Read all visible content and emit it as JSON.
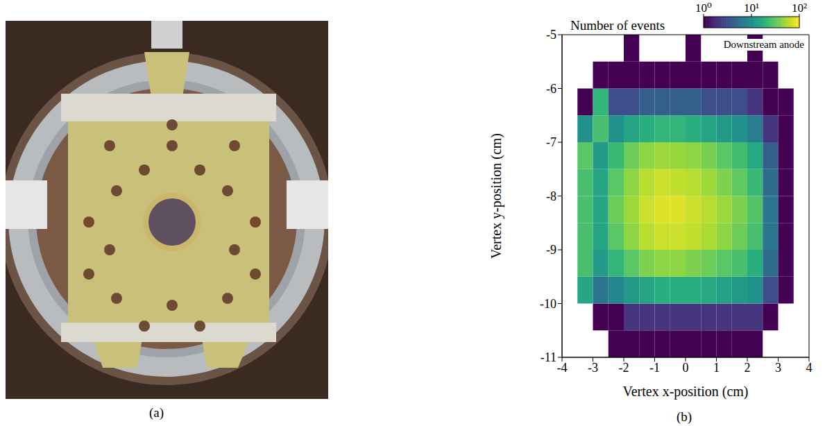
{
  "panel_labels": [
    "(a)",
    "(b)"
  ],
  "chart_data": {
    "type": "heatmap",
    "annotation": "Downstream anode",
    "x_label": "Vertex x-position (cm)",
    "y_label": "Vertex y-position (cm)",
    "xlim": [
      -4,
      4
    ],
    "ylim": [
      -11,
      -5
    ],
    "xticks": [
      -4,
      -3,
      -2,
      -1,
      0,
      1,
      2,
      3,
      4
    ],
    "yticks": [
      -11,
      -10,
      -9,
      -8,
      -7,
      -6,
      -5
    ],
    "x_bins": [
      -4,
      -3.5,
      -3,
      -2.5,
      -2,
      -1.5,
      -1,
      -0.5,
      0,
      0.5,
      1,
      1.5,
      2,
      2.5,
      3,
      3.5,
      4
    ],
    "y_bins": [
      -11,
      -10.5,
      -10,
      -9.5,
      -9,
      -8.5,
      -8,
      -7.5,
      -7,
      -6.5,
      -6,
      -5.5,
      -5
    ],
    "counts": [
      [
        0,
        0,
        0,
        1,
        1,
        1,
        1,
        1,
        1,
        1,
        1,
        1,
        1,
        0,
        0,
        0
      ],
      [
        0,
        0,
        1,
        1,
        2,
        2,
        2,
        2,
        2,
        2,
        2,
        2,
        2,
        1,
        0,
        0
      ],
      [
        0,
        15,
        6,
        8,
        12,
        15,
        18,
        18,
        18,
        16,
        14,
        12,
        10,
        3,
        1,
        0
      ],
      [
        0,
        25,
        12,
        20,
        30,
        40,
        45,
        45,
        40,
        35,
        30,
        25,
        18,
        5,
        1,
        0
      ],
      [
        0,
        25,
        15,
        30,
        45,
        60,
        70,
        70,
        65,
        55,
        45,
        35,
        25,
        6,
        1,
        0
      ],
      [
        0,
        25,
        15,
        35,
        50,
        70,
        80,
        80,
        70,
        60,
        50,
        40,
        28,
        6,
        1,
        0
      ],
      [
        0,
        25,
        15,
        30,
        45,
        60,
        70,
        65,
        60,
        50,
        40,
        32,
        22,
        5,
        1,
        0
      ],
      [
        0,
        30,
        12,
        22,
        35,
        45,
        50,
        48,
        45,
        38,
        30,
        24,
        16,
        4,
        1,
        0
      ],
      [
        0,
        10,
        25,
        10,
        15,
        18,
        20,
        20,
        18,
        15,
        12,
        10,
        7,
        2,
        1,
        0
      ],
      [
        0,
        1,
        20,
        3,
        3,
        4,
        4,
        4,
        4,
        3,
        3,
        3,
        2,
        1,
        1,
        0
      ],
      [
        0,
        0,
        1,
        1,
        1,
        1,
        1,
        1,
        1,
        1,
        1,
        1,
        1,
        1,
        0,
        0
      ],
      [
        0,
        0,
        0,
        0,
        1,
        0,
        0,
        0,
        1,
        0,
        0,
        0,
        1,
        0,
        0,
        0
      ]
    ],
    "colorbar": {
      "title": "Number of events",
      "range": [
        1,
        100
      ],
      "log": true,
      "ticks": [
        {
          "value": 1,
          "label": "10⁰"
        },
        {
          "value": 10,
          "label": "10¹"
        },
        {
          "value": 100,
          "label": "10²"
        }
      ]
    }
  }
}
